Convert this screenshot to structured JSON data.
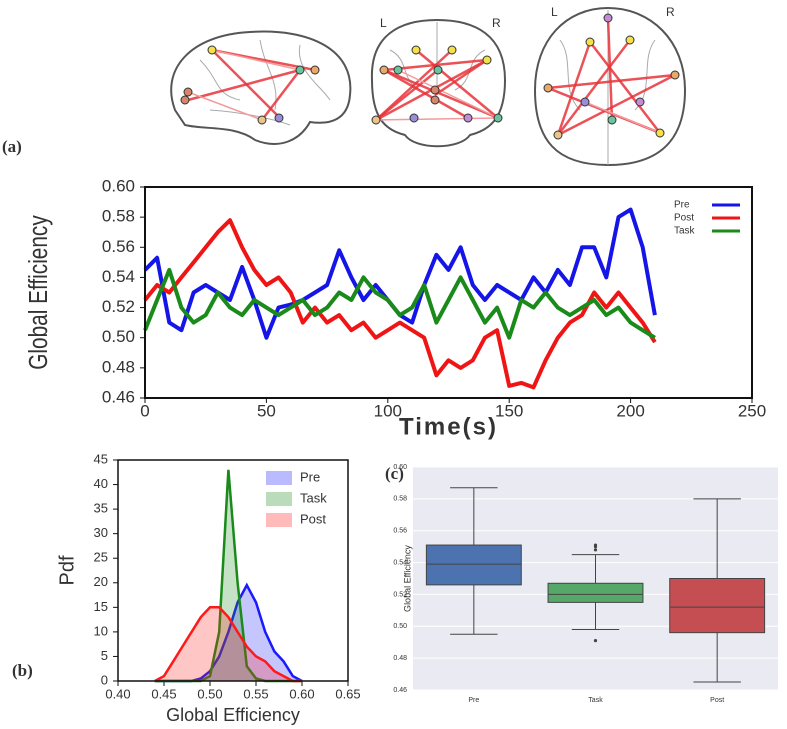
{
  "figure": {
    "panels": [
      "(a)",
      "(b)",
      "(c)"
    ],
    "hemispheres": [
      "L",
      "R",
      "L",
      "R"
    ]
  },
  "chart_data": [
    {
      "type": "line",
      "x_label": "Time(s)",
      "y_label": "Global Efficiency",
      "legend": "upper right",
      "x": [
        0,
        5,
        10,
        15,
        20,
        25,
        30,
        35,
        40,
        45,
        50,
        55,
        60,
        65,
        70,
        75,
        80,
        85,
        90,
        95,
        100,
        105,
        110,
        115,
        120,
        125,
        130,
        135,
        140,
        145,
        150,
        155,
        160,
        165,
        170,
        175,
        180,
        185,
        190,
        195,
        200,
        205,
        210
      ],
      "series": [
        {
          "name": "Pre",
          "color": "#1515e8",
          "values": [
            0.545,
            0.553,
            0.51,
            0.505,
            0.53,
            0.535,
            0.53,
            0.525,
            0.547,
            0.525,
            0.5,
            0.52,
            0.522,
            0.525,
            0.53,
            0.535,
            0.558,
            0.54,
            0.525,
            0.535,
            0.525,
            0.515,
            0.51,
            0.535,
            0.555,
            0.545,
            0.56,
            0.535,
            0.525,
            0.535,
            0.53,
            0.525,
            0.54,
            0.53,
            0.545,
            0.535,
            0.56,
            0.56,
            0.54,
            0.58,
            0.585,
            0.56,
            0.515
          ]
        },
        {
          "name": "Post",
          "color": "#f01515",
          "values": [
            0.525,
            0.535,
            0.53,
            0.54,
            0.55,
            0.56,
            0.57,
            0.578,
            0.56,
            0.545,
            0.535,
            0.54,
            0.53,
            0.51,
            0.52,
            0.51,
            0.515,
            0.505,
            0.51,
            0.5,
            0.505,
            0.51,
            0.505,
            0.5,
            0.475,
            0.485,
            0.48,
            0.485,
            0.5,
            0.505,
            0.468,
            0.47,
            0.467,
            0.485,
            0.5,
            0.51,
            0.515,
            0.53,
            0.52,
            0.53,
            0.52,
            0.51,
            0.497
          ]
        },
        {
          "name": "Task",
          "color": "#1a8a1a",
          "values": [
            0.505,
            0.525,
            0.545,
            0.52,
            0.51,
            0.515,
            0.53,
            0.52,
            0.515,
            0.525,
            0.52,
            0.515,
            0.52,
            0.525,
            0.515,
            0.52,
            0.53,
            0.525,
            0.54,
            0.53,
            0.525,
            0.515,
            0.52,
            0.535,
            0.51,
            0.525,
            0.54,
            0.525,
            0.51,
            0.52,
            0.5,
            0.525,
            0.52,
            0.53,
            0.52,
            0.515,
            0.52,
            0.525,
            0.515,
            0.52,
            0.51,
            0.505,
            0.5
          ]
        }
      ],
      "xlim": [
        0,
        250
      ],
      "xticks": [
        0,
        50,
        100,
        150,
        200,
        250
      ],
      "ylim": [
        0.46,
        0.6
      ],
      "yticks": [
        0.46,
        0.48,
        {
          "value": 0.5,
          "label": "0.50"
        },
        0.52,
        0.54,
        0.56,
        0.58,
        {
          "value": 0.6,
          "label": "0.60"
        }
      ],
      "grid": false
    },
    {
      "type": "area",
      "x_label": "Global Efficiency",
      "y_label": "Pdf",
      "legend": "upper right",
      "x": [
        0.44,
        0.45,
        0.46,
        0.47,
        0.48,
        0.49,
        0.5,
        0.51,
        0.52,
        0.53,
        0.54,
        0.55,
        0.56,
        0.57,
        0.58,
        0.59,
        0.6
      ],
      "series": [
        {
          "name": "Pre",
          "color": "#1a1aff",
          "values": [
            0,
            0,
            0,
            0,
            0,
            0.5,
            2,
            5,
            10,
            16,
            19.5,
            16,
            10,
            6,
            4,
            1,
            0
          ]
        },
        {
          "name": "Task",
          "color": "#1a8a1a",
          "values": [
            0,
            0,
            0,
            0,
            0,
            0,
            1,
            10,
            43,
            20,
            3,
            0.5,
            0,
            0,
            0,
            0,
            0
          ]
        },
        {
          "name": "Post",
          "color": "#ff1a1a",
          "values": [
            0,
            1,
            4,
            7,
            10,
            13,
            15,
            15,
            13,
            10,
            7,
            5,
            4,
            2,
            1,
            0,
            0
          ]
        }
      ],
      "xlim": [
        0.4,
        0.65
      ],
      "xticks": [
        {
          "value": 0.4,
          "label": "0.40"
        },
        0.45,
        {
          "value": 0.5,
          "label": "0.50"
        },
        0.55,
        {
          "value": 0.6,
          "label": "0.60"
        },
        0.65
      ],
      "ylim": [
        0,
        45
      ],
      "yticks": [
        0,
        5,
        10,
        15,
        20,
        25,
        30,
        35,
        40,
        45
      ],
      "grid": false
    },
    {
      "type": "box",
      "y_label": "Global Efficiency",
      "categories": [
        "Pre",
        "Task",
        "Post"
      ],
      "colors": [
        "#4c72b0",
        "#55a868",
        "#c44e52"
      ],
      "boxes": [
        {
          "low": 0.495,
          "q1": 0.526,
          "median": 0.539,
          "q3": 0.551,
          "high": 0.587,
          "outliers": []
        },
        {
          "low": 0.498,
          "q1": 0.515,
          "median": 0.52,
          "q3": 0.527,
          "high": 0.545,
          "outliers": [
            0.548,
            0.55,
            0.551,
            0.491
          ]
        },
        {
          "low": 0.465,
          "q1": 0.496,
          "median": 0.512,
          "q3": 0.53,
          "high": 0.58,
          "outliers": []
        }
      ],
      "ylim": [
        0.46,
        0.6
      ],
      "yticks": [
        0.46,
        0.48,
        {
          "value": 0.5,
          "label": "0.50"
        },
        0.52,
        0.54,
        0.56,
        0.58,
        {
          "value": 0.6,
          "label": "0.60"
        }
      ],
      "grid": true
    }
  ]
}
